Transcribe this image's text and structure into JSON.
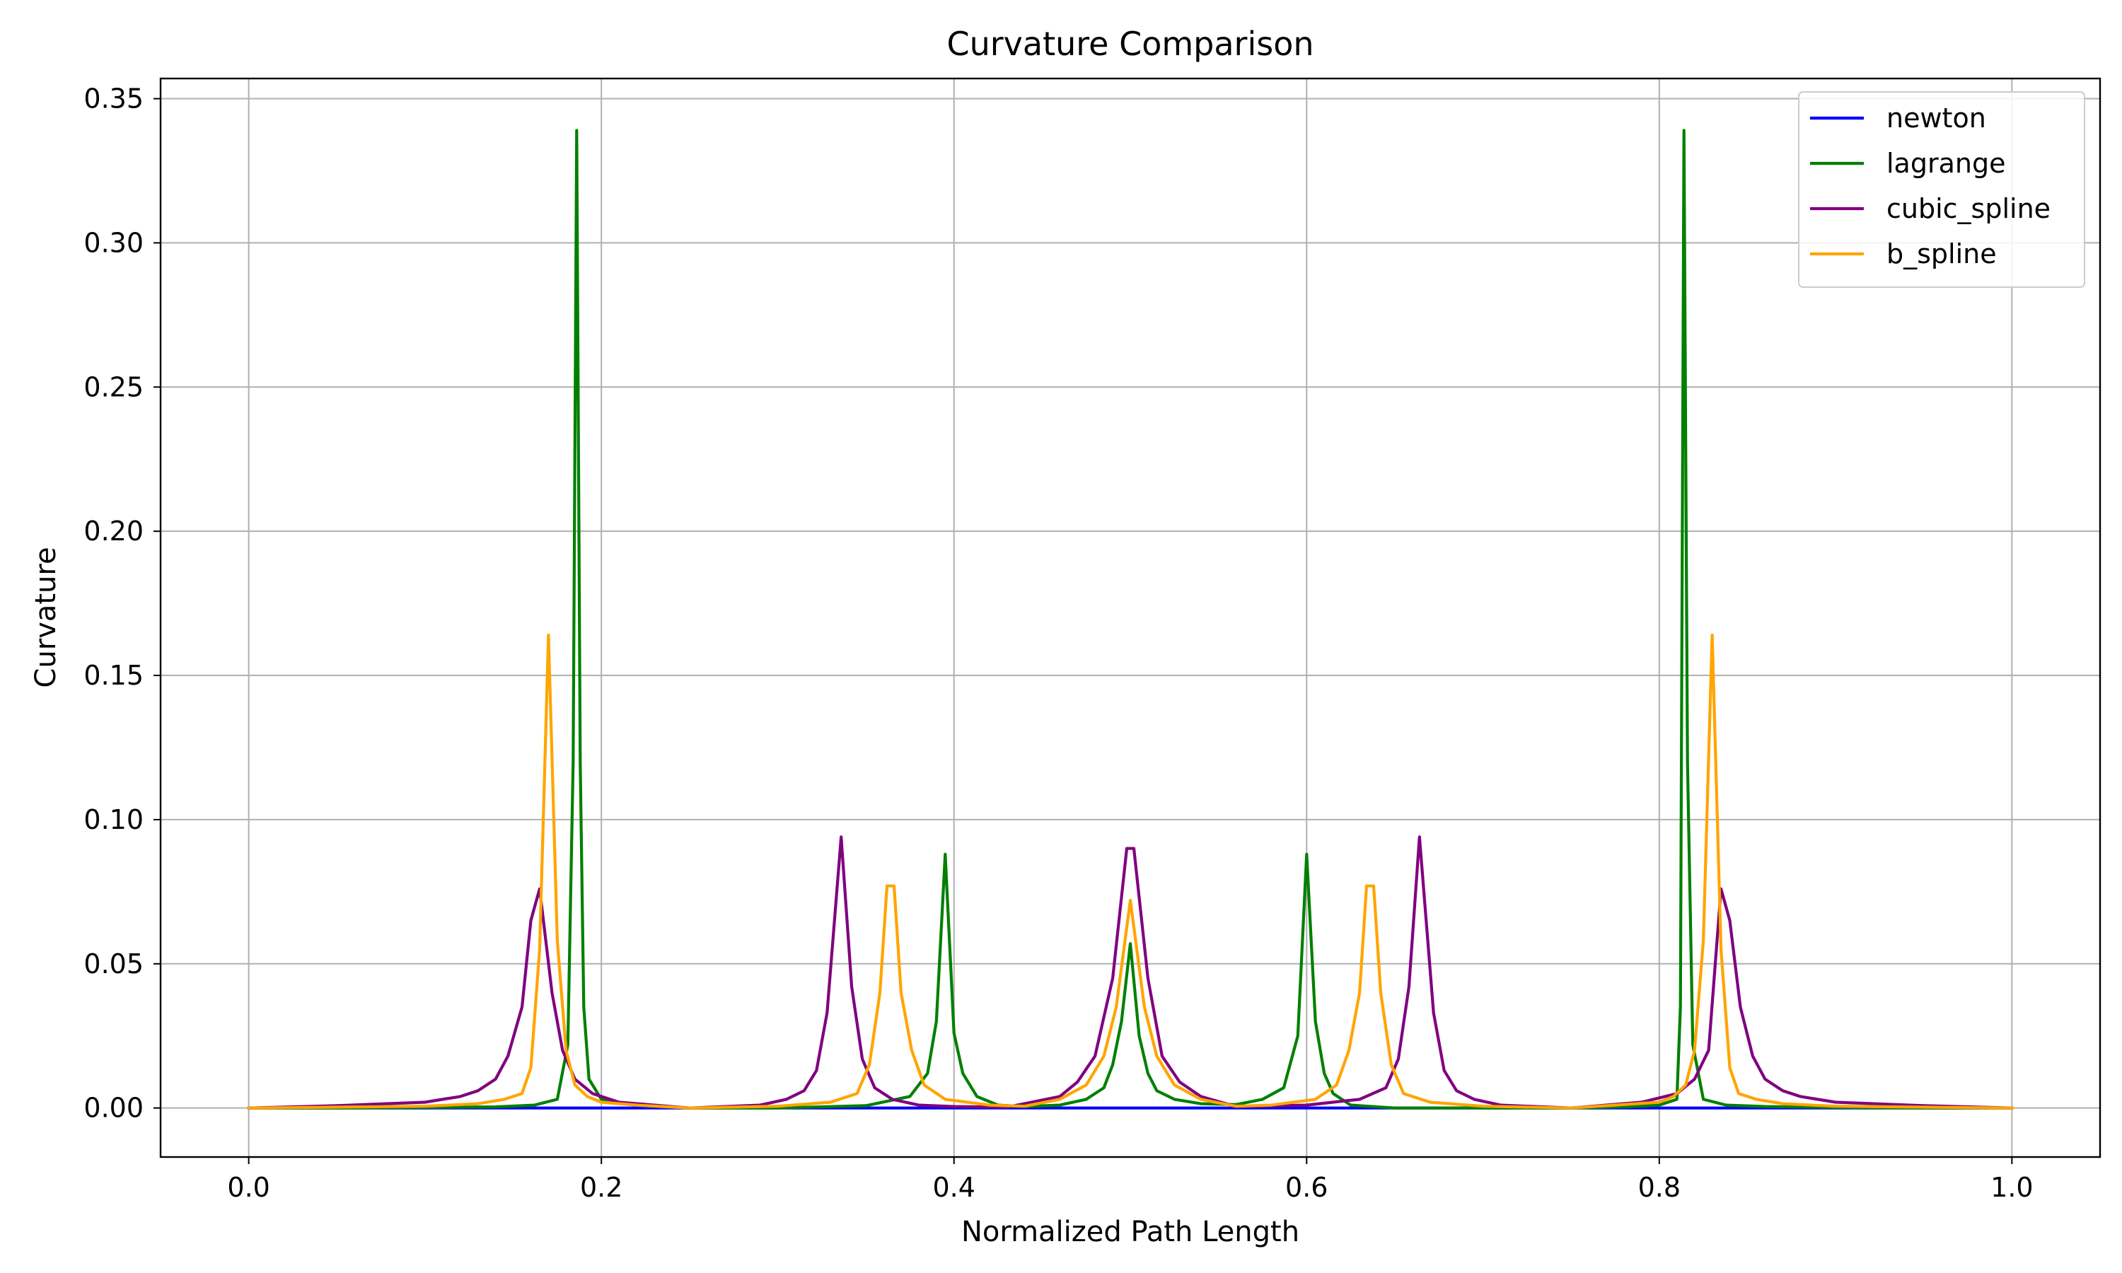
{
  "chart_data": {
    "type": "line",
    "title": "Curvature Comparison",
    "xlabel": "Normalized Path Length",
    "ylabel": "Curvature",
    "xlim": [
      -0.05,
      1.05
    ],
    "ylim": [
      -0.017,
      0.357
    ],
    "xticks": [
      "0.0",
      "0.2",
      "0.4",
      "0.6",
      "0.8",
      "1.0"
    ],
    "yticks": [
      "0.00",
      "0.05",
      "0.10",
      "0.15",
      "0.20",
      "0.25",
      "0.30",
      "0.35"
    ],
    "grid": true,
    "legend_position": "top-right",
    "series": [
      {
        "name": "newton",
        "color": "#0000ff",
        "x": [
          0.0,
          1.0
        ],
        "y": [
          0.0,
          0.0
        ]
      },
      {
        "name": "lagrange",
        "color": "#008000",
        "x": [
          0.0,
          0.05,
          0.1,
          0.14,
          0.162,
          0.175,
          0.181,
          0.184,
          0.186,
          0.188,
          0.19,
          0.193,
          0.2,
          0.22,
          0.25,
          0.3,
          0.35,
          0.375,
          0.385,
          0.39,
          0.395,
          0.4,
          0.405,
          0.413,
          0.425,
          0.44,
          0.46,
          0.475,
          0.485,
          0.49,
          0.495,
          0.5,
          0.505,
          0.51,
          0.515,
          0.525,
          0.54,
          0.56,
          0.575,
          0.587,
          0.595,
          0.6,
          0.605,
          0.61,
          0.615,
          0.625,
          0.65,
          0.7,
          0.75,
          0.78,
          0.8,
          0.81,
          0.812,
          0.814,
          0.816,
          0.819,
          0.825,
          0.838,
          0.86,
          0.9,
          0.95,
          1.0
        ],
        "y": [
          0.0,
          0.0,
          0.0002,
          0.0004,
          0.001,
          0.003,
          0.022,
          0.12,
          0.339,
          0.12,
          0.035,
          0.01,
          0.003,
          0.001,
          0.0,
          0.0,
          0.0008,
          0.004,
          0.012,
          0.03,
          0.088,
          0.026,
          0.012,
          0.004,
          0.001,
          0.0005,
          0.001,
          0.003,
          0.007,
          0.015,
          0.03,
          0.057,
          0.025,
          0.012,
          0.006,
          0.003,
          0.0015,
          0.0012,
          0.003,
          0.007,
          0.025,
          0.088,
          0.03,
          0.012,
          0.005,
          0.001,
          0.0,
          0.0,
          0.0,
          0.0004,
          0.001,
          0.003,
          0.035,
          0.339,
          0.12,
          0.022,
          0.003,
          0.001,
          0.0005,
          0.0002,
          0.0,
          0.0
        ]
      },
      {
        "name": "cubic_spline",
        "color": "#800080",
        "x": [
          0.0,
          0.05,
          0.1,
          0.12,
          0.13,
          0.14,
          0.147,
          0.155,
          0.16,
          0.165,
          0.172,
          0.178,
          0.185,
          0.195,
          0.21,
          0.25,
          0.29,
          0.305,
          0.315,
          0.322,
          0.328,
          0.336,
          0.342,
          0.348,
          0.355,
          0.365,
          0.38,
          0.4,
          0.43,
          0.46,
          0.47,
          0.48,
          0.49,
          0.498,
          0.502,
          0.51,
          0.518,
          0.528,
          0.54,
          0.56,
          0.6,
          0.63,
          0.645,
          0.652,
          0.658,
          0.664,
          0.672,
          0.678,
          0.685,
          0.695,
          0.71,
          0.75,
          0.79,
          0.81,
          0.82,
          0.828,
          0.835,
          0.84,
          0.846,
          0.853,
          0.86,
          0.87,
          0.88,
          0.9,
          0.95,
          1.0
        ],
        "y": [
          0.0,
          0.0008,
          0.002,
          0.004,
          0.006,
          0.01,
          0.018,
          0.035,
          0.065,
          0.076,
          0.04,
          0.02,
          0.01,
          0.005,
          0.002,
          0.0,
          0.001,
          0.003,
          0.006,
          0.013,
          0.033,
          0.094,
          0.042,
          0.017,
          0.007,
          0.003,
          0.001,
          0.0005,
          0.0003,
          0.004,
          0.009,
          0.018,
          0.045,
          0.09,
          0.09,
          0.045,
          0.018,
          0.009,
          0.004,
          0.0005,
          0.001,
          0.003,
          0.007,
          0.017,
          0.042,
          0.094,
          0.033,
          0.013,
          0.006,
          0.003,
          0.001,
          0.0,
          0.002,
          0.005,
          0.01,
          0.02,
          0.076,
          0.065,
          0.035,
          0.018,
          0.01,
          0.006,
          0.004,
          0.002,
          0.0008,
          0.0
        ]
      },
      {
        "name": "b_spline",
        "color": "#ffa500",
        "x": [
          0.0,
          0.05,
          0.1,
          0.13,
          0.145,
          0.155,
          0.16,
          0.165,
          0.17,
          0.175,
          0.18,
          0.185,
          0.192,
          0.2,
          0.22,
          0.25,
          0.3,
          0.33,
          0.345,
          0.352,
          0.358,
          0.362,
          0.366,
          0.37,
          0.376,
          0.383,
          0.395,
          0.42,
          0.44,
          0.46,
          0.475,
          0.485,
          0.492,
          0.5,
          0.508,
          0.515,
          0.525,
          0.54,
          0.56,
          0.58,
          0.605,
          0.617,
          0.624,
          0.63,
          0.634,
          0.638,
          0.642,
          0.648,
          0.655,
          0.67,
          0.7,
          0.75,
          0.8,
          0.808,
          0.815,
          0.82,
          0.825,
          0.83,
          0.835,
          0.84,
          0.845,
          0.855,
          0.87,
          0.9,
          0.95,
          1.0
        ],
        "y": [
          0.0,
          0.0003,
          0.0006,
          0.0015,
          0.003,
          0.005,
          0.014,
          0.055,
          0.164,
          0.058,
          0.02,
          0.008,
          0.004,
          0.002,
          0.001,
          0.0,
          0.0006,
          0.002,
          0.005,
          0.015,
          0.04,
          0.077,
          0.077,
          0.04,
          0.02,
          0.008,
          0.003,
          0.001,
          0.0006,
          0.003,
          0.008,
          0.018,
          0.035,
          0.072,
          0.035,
          0.018,
          0.008,
          0.003,
          0.0006,
          0.001,
          0.003,
          0.008,
          0.02,
          0.04,
          0.077,
          0.077,
          0.04,
          0.015,
          0.005,
          0.002,
          0.0006,
          0.0,
          0.002,
          0.004,
          0.008,
          0.02,
          0.058,
          0.164,
          0.055,
          0.014,
          0.005,
          0.003,
          0.0015,
          0.0006,
          0.0003,
          0.0
        ]
      }
    ]
  }
}
